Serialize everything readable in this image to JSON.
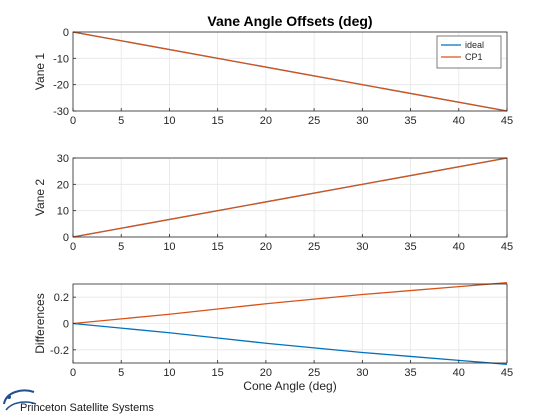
{
  "chart_data": [
    {
      "type": "line",
      "title": "Vane Angle Offsets (deg)",
      "ylabel": "Vane 1",
      "xlabel": "",
      "xlim": [
        0,
        45
      ],
      "ylim": [
        -30,
        0
      ],
      "xticks": [
        0,
        5,
        10,
        15,
        20,
        25,
        30,
        35,
        40,
        45
      ],
      "yticks": [
        -30,
        -20,
        -10,
        0
      ],
      "grid": true,
      "legend": "top-right",
      "series": [
        {
          "name": "ideal",
          "color": "#0072BD",
          "x": [
            0,
            45
          ],
          "values": [
            0,
            -30
          ]
        },
        {
          "name": "CP1",
          "color": "#D95319",
          "x": [
            0,
            45
          ],
          "values": [
            0,
            -30
          ]
        }
      ]
    },
    {
      "type": "line",
      "title": "",
      "ylabel": "Vane 2",
      "xlabel": "",
      "xlim": [
        0,
        45
      ],
      "ylim": [
        0,
        30
      ],
      "xticks": [
        0,
        5,
        10,
        15,
        20,
        25,
        30,
        35,
        40,
        45
      ],
      "yticks": [
        0,
        10,
        20,
        30
      ],
      "grid": true,
      "series": [
        {
          "color": "#0072BD",
          "x": [
            0,
            45
          ],
          "values": [
            0,
            30
          ]
        },
        {
          "color": "#D95319",
          "x": [
            0,
            45
          ],
          "values": [
            0,
            30
          ]
        }
      ]
    },
    {
      "type": "line",
      "title": "",
      "ylabel": "Differences",
      "xlabel": "Cone Angle (deg)",
      "xlim": [
        0,
        45
      ],
      "ylim": [
        -0.3,
        0.3
      ],
      "xticks": [
        0,
        5,
        10,
        15,
        20,
        25,
        30,
        35,
        40,
        45
      ],
      "yticks": [
        -0.2,
        0,
        0.2
      ],
      "grid": true,
      "series": [
        {
          "color": "#0072BD",
          "x": [
            0,
            5,
            10,
            15,
            20,
            25,
            30,
            35,
            40,
            45
          ],
          "values": [
            0,
            -0.035,
            -0.07,
            -0.11,
            -0.15,
            -0.185,
            -0.22,
            -0.25,
            -0.28,
            -0.31
          ]
        },
        {
          "color": "#D95319",
          "x": [
            0,
            5,
            10,
            15,
            20,
            25,
            30,
            35,
            40,
            45
          ],
          "values": [
            0,
            0.035,
            0.07,
            0.11,
            0.15,
            0.185,
            0.22,
            0.25,
            0.28,
            0.31
          ]
        }
      ]
    }
  ],
  "logo": {
    "text": "Princeton Satellite Systems"
  }
}
